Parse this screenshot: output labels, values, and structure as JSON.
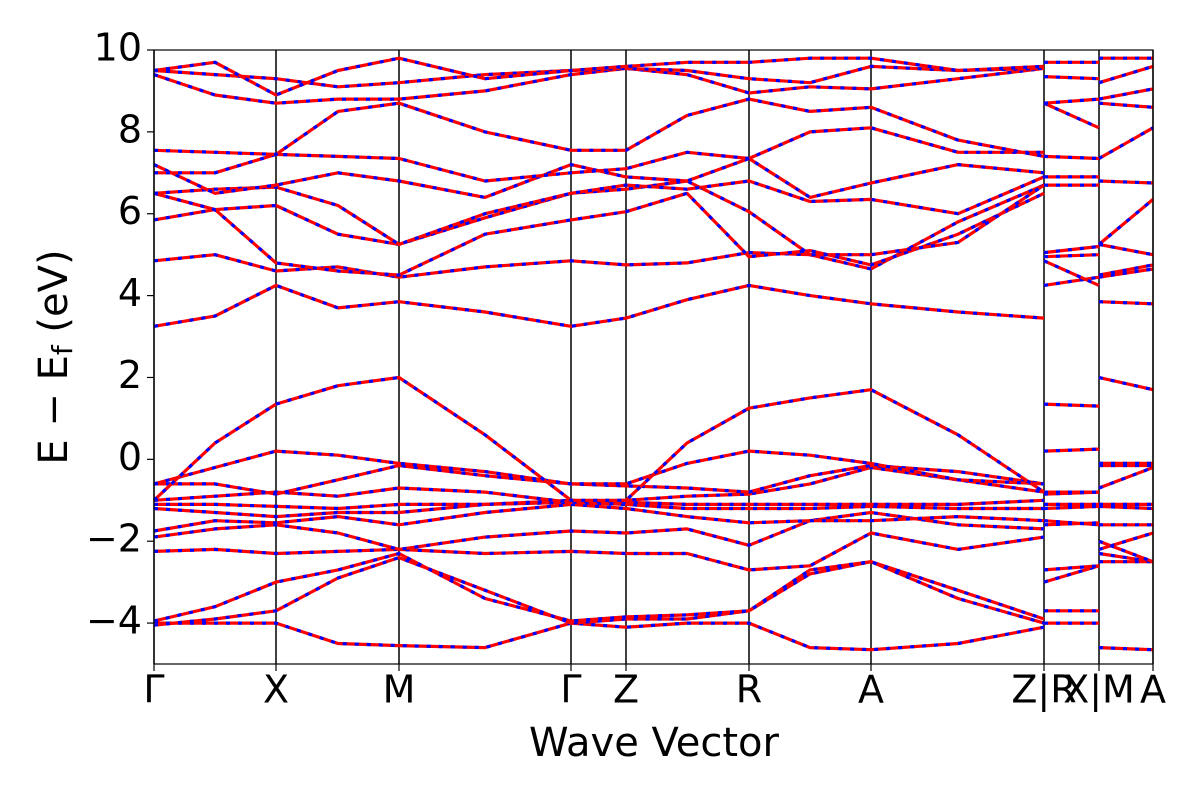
{
  "chart_data": {
    "type": "line",
    "xlabel": "Wave Vector",
    "ylabel": [
      "E − E",
      "f",
      " (eV)"
    ],
    "x": [
      0,
      0.61,
      1.22,
      1.84,
      2.45,
      3.31,
      4.17,
      4.72,
      5.33,
      5.95,
      6.56,
      7.17,
      8.04,
      8.9,
      8.9,
      8.9,
      9.45,
      9.45,
      9.45,
      9.99
    ],
    "xlim": [
      0,
      9.99
    ],
    "xticks": [
      {
        "value": 0,
        "label": "Γ"
      },
      {
        "value": 1.22,
        "label": "X"
      },
      {
        "value": 2.45,
        "label": "M"
      },
      {
        "value": 4.17,
        "label": "Γ"
      },
      {
        "value": 4.72,
        "label": "Z"
      },
      {
        "value": 5.95,
        "label": "R"
      },
      {
        "value": 7.17,
        "label": "A"
      },
      {
        "value": 8.9,
        "label": "Z|R"
      },
      {
        "value": 9.45,
        "label": "X|M"
      },
      {
        "value": 9.99,
        "label": "A"
      }
    ],
    "ylim": [
      -5,
      10
    ],
    "yticks": [
      {
        "value": -4,
        "label": "−4"
      },
      {
        "value": -2,
        "label": "−2"
      },
      0,
      2,
      4,
      6,
      8,
      10
    ],
    "grid": true,
    "color": "#ff0000",
    "dash_color": "#0000ff",
    "series": [
      {
        "values": [
          -4.0,
          -4.0,
          -4.0,
          -4.5,
          -4.55,
          -4.6,
          -4.0,
          -4.1,
          -4.0,
          -4.0,
          -4.6,
          -4.65,
          -4.5,
          -4.1,
          null,
          -4.0,
          -4.0,
          null,
          -4.6,
          -4.65
        ]
      },
      {
        "values": [
          -4.05,
          -3.9,
          -3.7,
          -2.9,
          -2.4,
          -3.2,
          -4.0,
          -3.9,
          -3.9,
          -3.7,
          -2.8,
          -2.5,
          -3.2,
          -3.9,
          null,
          -3.7,
          -3.7,
          null,
          -2.5,
          -2.5
        ]
      },
      {
        "values": [
          -3.95,
          -3.6,
          -3.0,
          -2.7,
          -2.3,
          -3.4,
          -3.95,
          -3.85,
          -3.8,
          -3.7,
          -2.7,
          -2.5,
          -3.4,
          -4.0,
          null,
          -3.0,
          -2.6,
          null,
          -2.3,
          -2.5
        ]
      },
      {
        "values": [
          -2.25,
          -2.2,
          -2.3,
          -2.25,
          -2.2,
          -2.3,
          -2.25,
          -2.3,
          -2.3,
          -2.7,
          -2.6,
          -1.8,
          -2.2,
          -1.9,
          null,
          -2.7,
          -2.6,
          null,
          -2.2,
          -1.8
        ]
      },
      {
        "values": [
          -1.9,
          -1.7,
          -1.6,
          -1.8,
          -2.2,
          -1.9,
          -1.75,
          -1.8,
          -1.7,
          -2.1,
          -1.5,
          -1.3,
          -1.6,
          -1.7,
          null,
          -1.5,
          -1.6,
          null,
          -2.0,
          -2.5
        ]
      },
      {
        "values": [
          -1.75,
          -1.5,
          -1.55,
          -1.4,
          -1.6,
          -1.3,
          -1.1,
          -1.2,
          -1.4,
          -1.55,
          -1.5,
          -1.5,
          -1.4,
          -1.5,
          null,
          -1.6,
          -1.55,
          null,
          -1.6,
          -1.6
        ]
      },
      {
        "values": [
          -1.2,
          -1.3,
          -1.4,
          -1.3,
          -1.3,
          -1.1,
          -1.05,
          -1.1,
          -1.2,
          -1.2,
          -1.2,
          -1.15,
          -1.2,
          -1.2,
          null,
          -1.2,
          -1.15,
          null,
          -1.15,
          -1.2
        ]
      },
      {
        "values": [
          -1.1,
          -1.1,
          -1.15,
          -1.2,
          -1.1,
          -1.1,
          -1.0,
          -1.05,
          -1.1,
          -1.1,
          -1.1,
          -1.1,
          -1.1,
          -1.0,
          null,
          -1.1,
          -1.1,
          null,
          -1.1,
          -1.1
        ]
      },
      {
        "values": [
          -1.0,
          -0.9,
          -0.8,
          -0.9,
          -0.7,
          -0.8,
          -1.05,
          -1.0,
          -0.9,
          -0.85,
          -0.6,
          -0.2,
          -0.5,
          -0.8,
          null,
          -0.85,
          -0.8,
          null,
          -0.7,
          -0.2
        ]
      },
      {
        "values": [
          -0.6,
          -0.6,
          -0.85,
          -0.5,
          -0.15,
          -0.4,
          -0.6,
          -0.65,
          -0.7,
          -0.8,
          -0.4,
          -0.15,
          -0.3,
          -0.6,
          null,
          -0.8,
          -0.8,
          null,
          -0.15,
          -0.15
        ]
      },
      {
        "values": [
          -0.6,
          -0.2,
          0.2,
          0.1,
          -0.1,
          -0.3,
          -0.6,
          -0.6,
          -0.1,
          0.2,
          0.1,
          -0.1,
          -0.5,
          -0.6,
          null,
          0.2,
          0.25,
          null,
          -0.1,
          -0.1
        ]
      },
      {
        "values": [
          -1.0,
          0.4,
          1.35,
          1.8,
          2.0,
          0.6,
          -1.0,
          -1.0,
          0.4,
          1.25,
          1.5,
          1.7,
          0.6,
          -0.8,
          null,
          1.35,
          1.3,
          null,
          2.0,
          1.7
        ]
      },
      {
        "values": [
          3.25,
          3.5,
          4.25,
          3.7,
          3.85,
          3.6,
          3.25,
          3.45,
          3.9,
          4.25,
          4.0,
          3.8,
          3.6,
          3.45,
          null,
          4.25,
          4.45,
          null,
          3.85,
          3.8
        ]
      },
      {
        "values": [
          4.85,
          5.0,
          4.6,
          4.7,
          4.45,
          4.7,
          4.85,
          4.75,
          4.8,
          5.05,
          5.0,
          4.65,
          5.8,
          6.7,
          null,
          4.85,
          4.25,
          null,
          4.45,
          4.65
        ]
      },
      {
        "values": [
          5.85,
          6.1,
          4.8,
          4.6,
          4.5,
          5.5,
          5.85,
          6.05,
          6.5,
          4.95,
          5.1,
          4.75,
          5.5,
          6.5,
          null,
          4.95,
          5.0,
          null,
          4.5,
          4.75
        ]
      },
      {
        "values": [
          6.5,
          6.1,
          6.2,
          5.5,
          5.25,
          5.9,
          6.5,
          6.6,
          6.8,
          6.05,
          5.0,
          5.0,
          5.3,
          6.7,
          null,
          5.05,
          5.2,
          null,
          5.25,
          5.0
        ]
      },
      {
        "values": [
          6.5,
          6.6,
          6.65,
          6.2,
          5.25,
          6.0,
          6.5,
          6.7,
          6.6,
          6.8,
          6.3,
          6.35,
          6.0,
          6.9,
          null,
          6.7,
          6.7,
          null,
          5.25,
          6.35
        ]
      },
      {
        "values": [
          7.2,
          6.5,
          6.7,
          7.0,
          6.8,
          6.4,
          7.2,
          6.9,
          6.8,
          7.35,
          6.4,
          6.75,
          7.2,
          7.0,
          null,
          6.9,
          6.9,
          null,
          6.8,
          6.75
        ]
      },
      {
        "values": [
          7.0,
          7.0,
          7.45,
          7.4,
          7.35,
          6.8,
          7.0,
          7.1,
          7.5,
          7.35,
          8.0,
          8.1,
          7.5,
          7.5,
          null,
          7.4,
          7.35,
          null,
          7.35,
          8.1
        ]
      },
      {
        "values": [
          7.55,
          7.5,
          7.45,
          8.5,
          8.7,
          8.0,
          7.55,
          7.55,
          8.4,
          8.8,
          8.5,
          8.6,
          7.8,
          7.4,
          null,
          8.7,
          8.1,
          null,
          8.7,
          8.6
        ]
      },
      {
        "values": [
          9.4,
          8.9,
          8.7,
          8.8,
          8.8,
          9.0,
          9.4,
          9.55,
          9.4,
          8.95,
          9.1,
          9.05,
          9.3,
          9.55,
          null,
          8.7,
          8.8,
          null,
          8.8,
          9.05
        ]
      },
      {
        "values": [
          9.5,
          9.4,
          9.3,
          9.1,
          9.2,
          9.4,
          9.5,
          9.55,
          9.5,
          9.3,
          9.2,
          9.6,
          9.5,
          9.55,
          null,
          9.35,
          9.3,
          null,
          9.2,
          9.6
        ]
      },
      {
        "values": [
          9.5,
          9.7,
          8.9,
          9.5,
          9.8,
          9.3,
          9.5,
          9.6,
          9.7,
          9.7,
          9.8,
          9.8,
          9.5,
          9.6,
          null,
          9.7,
          9.7,
          null,
          9.8,
          9.8
        ]
      }
    ]
  }
}
